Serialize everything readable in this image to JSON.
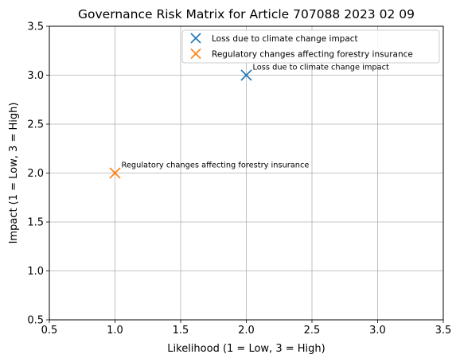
{
  "chart_data": {
    "type": "scatter",
    "title": "Governance Risk Matrix for Article 707088 2023 02 09",
    "xlabel": "Likelihood (1 = Low, 3 = High)",
    "ylabel": "Impact (1 = Low, 3 = High)",
    "xlim": [
      0.5,
      3.5
    ],
    "ylim": [
      0.5,
      3.5
    ],
    "xticks": [
      0.5,
      1.0,
      1.5,
      2.0,
      2.5,
      3.0,
      3.5
    ],
    "yticks": [
      0.5,
      1.0,
      1.5,
      2.0,
      2.5,
      3.0,
      3.5
    ],
    "xtick_labels": [
      "0.5",
      "1.0",
      "1.5",
      "2.0",
      "2.5",
      "3.0",
      "3.5"
    ],
    "ytick_labels": [
      "0.5",
      "1.0",
      "1.5",
      "2.0",
      "2.5",
      "3.0",
      "3.5"
    ],
    "grid": true,
    "legend_position": "top-right",
    "marker": "x",
    "series": [
      {
        "name": "Loss due to climate change impact",
        "color": "#1f77b4",
        "x": [
          2.0
        ],
        "y": [
          3.0
        ],
        "annotation": "Loss due to climate change impact"
      },
      {
        "name": "Regulatory changes affecting forestry insurance",
        "color": "#ff7f0e",
        "x": [
          1.0
        ],
        "y": [
          2.0
        ],
        "annotation": "Regulatory changes affecting forestry insurance"
      }
    ]
  }
}
